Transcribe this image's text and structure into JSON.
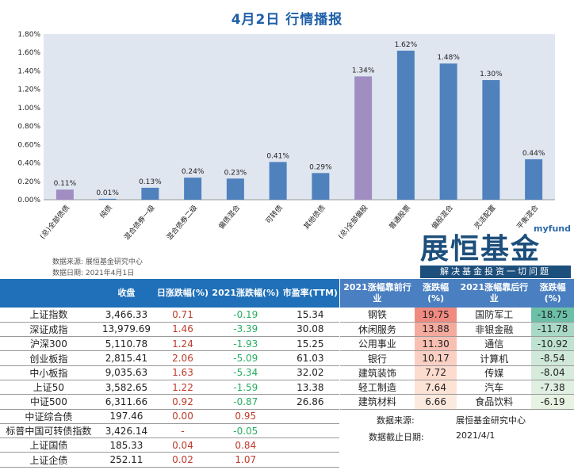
{
  "title": "4月2日  行情播报",
  "chart_data": {
    "type": "bar",
    "categories": [
      "(总)全部债债",
      "纯债",
      "混合债券一级",
      "混合债券二级",
      "偏债混合",
      "可转债",
      "其他债债",
      "(总)全部偏股",
      "普通股票",
      "偏股混合",
      "灵活配置",
      "平衡混合"
    ],
    "values": [
      0.11,
      0.01,
      0.13,
      0.24,
      0.23,
      0.41,
      0.29,
      1.34,
      1.62,
      1.48,
      1.3,
      0.44
    ],
    "labels": [
      "0.11%",
      "0.01%",
      "0.13%",
      "0.24%",
      "0.23%",
      "0.41%",
      "0.29%",
      "1.34%",
      "1.62%",
      "1.48%",
      "1.30%",
      "0.44%"
    ],
    "yticks": [
      "0.00%",
      "0.20%",
      "0.40%",
      "0.60%",
      "0.80%",
      "1.00%",
      "1.20%",
      "1.40%",
      "1.60%",
      "1.80%"
    ],
    "ylim": [
      0,
      1.8
    ],
    "colors": {
      "total": "#a08ec2",
      "normal": "#4f81bd"
    },
    "grid": false
  },
  "source": {
    "line1": "数据来源: 展恒基金研究中心",
    "line2": "数据日期: 2021年4月1日"
  },
  "logo": {
    "top": "myfund",
    "name": "展恒基金",
    "slogan": "解决基金投资一切问题"
  },
  "left_table": {
    "headers": [
      "",
      "收盘",
      "日涨跌幅(%)",
      "2021涨跌幅(%)",
      "市盈率(TTM)"
    ],
    "rows": [
      [
        "上证指数",
        "3,466.33",
        "0.71",
        "-0.19",
        "15.34"
      ],
      [
        "深证成指",
        "13,979.69",
        "1.46",
        "-3.39",
        "30.08"
      ],
      [
        "沪深300",
        "5,110.78",
        "1.24",
        "-1.93",
        "15.25"
      ],
      [
        "创业板指",
        "2,815.41",
        "2.06",
        "-5.09",
        "61.03"
      ],
      [
        "中小板指",
        "9,035.63",
        "1.63",
        "-5.34",
        "32.02"
      ],
      [
        "上证50",
        "3,582.65",
        "1.22",
        "-1.59",
        "13.38"
      ],
      [
        "中证500",
        "6,311.66",
        "0.92",
        "-0.87",
        "26.86"
      ],
      [
        "中证综合债",
        "197.46",
        "0.00",
        "0.95",
        ""
      ],
      [
        "标普中国可转债指数",
        "3,426.14",
        "-",
        "-0.05",
        ""
      ],
      [
        "上证国债",
        "185.33",
        "0.04",
        "0.84",
        ""
      ],
      [
        "上证企债",
        "252.11",
        "0.02",
        "1.07",
        ""
      ]
    ]
  },
  "right_table": {
    "headers": [
      "2021涨幅靠前行业",
      "涨跌幅(%)",
      "2021涨幅靠后行业",
      "涨跌幅(%)"
    ],
    "rows": [
      [
        "钢铁",
        "19.75",
        "国防军工",
        "-18.75"
      ],
      [
        "休闲服务",
        "13.88",
        "非银金融",
        "-11.78"
      ],
      [
        "公用事业",
        "11.30",
        "通信",
        "-10.92"
      ],
      [
        "银行",
        "10.17",
        "计算机",
        "-8.54"
      ],
      [
        "建筑装饰",
        "7.72",
        "传媒",
        "-8.04"
      ],
      [
        "轻工制造",
        "7.64",
        "汽车",
        "-7.38"
      ],
      [
        "建筑材料",
        "6.66",
        "食品饮料",
        "-6.19"
      ]
    ],
    "top_colors": [
      "#f08a80",
      "#f5aa9e",
      "#f8bfb2",
      "#fad0c4",
      "#fcdccf",
      "#fde3d6",
      "#fdeadf"
    ],
    "bottom_colors": [
      "#6cc0a8",
      "#a9d9c6",
      "#bfe2d1",
      "#cfe8d9",
      "#d6ebdc",
      "#dfefe1",
      "#e7f2e3"
    ]
  },
  "right_notes": {
    "source_label": "数据来源:",
    "source_value": "展恒基金研究中心",
    "date_label": "数据截止日期:",
    "date_value": "2021/4/1"
  }
}
